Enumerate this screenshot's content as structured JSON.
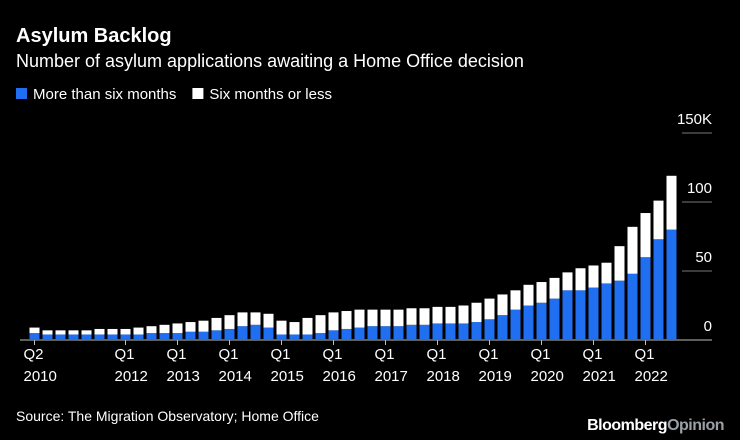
{
  "chart_data": {
    "type": "stacked_bar",
    "title": "Asylum Backlog",
    "subtitle": "Number of asylum applications awaiting a Home Office decision",
    "source": "Source: The Migration Observatory; Home Office",
    "brand": [
      "Bloomberg",
      "Opinion"
    ],
    "categories": [
      "Q2 2010",
      null,
      null,
      null,
      null,
      null,
      null,
      "Q1 2012",
      null,
      null,
      null,
      "Q1 2013",
      null,
      null,
      null,
      "Q1 2014",
      null,
      null,
      null,
      "Q1 2015",
      null,
      null,
      null,
      "Q1 2016",
      null,
      null,
      null,
      "Q1 2017",
      null,
      null,
      null,
      "Q1 2018",
      null,
      null,
      null,
      "Q1 2019",
      null,
      null,
      null,
      "Q1 2020",
      null,
      null,
      null,
      "Q1 2021",
      null,
      null,
      null,
      "Q1 2022",
      null,
      null
    ],
    "series": [
      {
        "name": "More than six months",
        "color": "#1f6ff0",
        "values": [
          5,
          4,
          4,
          4,
          4,
          4,
          4,
          4,
          4,
          5,
          5,
          5,
          6,
          6,
          7,
          8,
          10,
          11,
          9,
          4,
          4,
          4,
          5,
          7,
          8,
          9,
          10,
          10,
          10,
          11,
          11,
          12,
          12,
          12,
          13,
          15,
          18,
          22,
          25,
          27,
          30,
          36,
          36,
          38,
          41,
          43,
          48,
          60,
          73,
          80
        ]
      },
      {
        "name": "Six months or less",
        "color": "#ffffff",
        "values": [
          4,
          3,
          3,
          3,
          3,
          4,
          4,
          4,
          5,
          5,
          6,
          7,
          7,
          8,
          9,
          10,
          10,
          9,
          10,
          10,
          9,
          12,
          13,
          13,
          13,
          13,
          12,
          12,
          12,
          12,
          12,
          12,
          12,
          13,
          14,
          15,
          15,
          14,
          15,
          15,
          15,
          13,
          16,
          16,
          15,
          25,
          34,
          32,
          28,
          39
        ]
      }
    ],
    "ylim": [
      0,
      150
    ],
    "yticks": [
      0,
      50,
      100,
      {
        "value": 150,
        "label": "150K"
      }
    ]
  }
}
